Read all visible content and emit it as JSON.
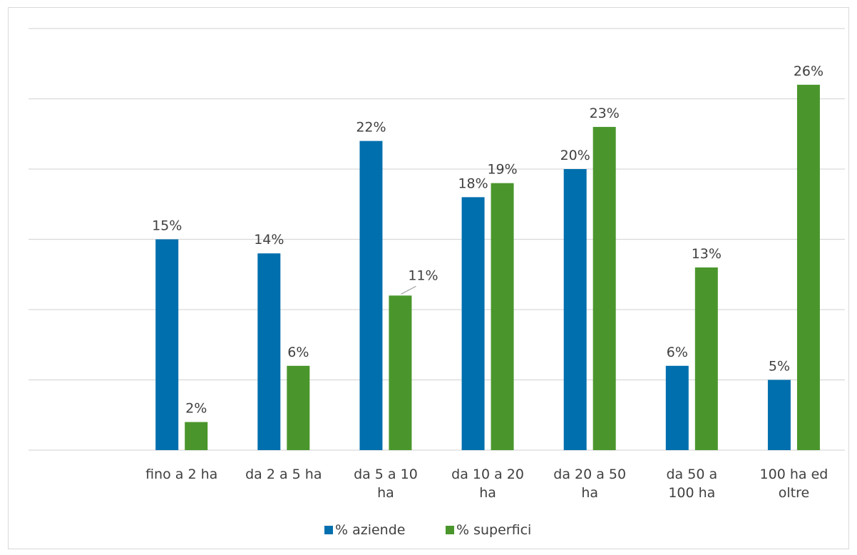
{
  "chart_data": {
    "type": "bar",
    "categories": [
      [
        "",
        ""
      ],
      [
        "fino a 2 ha",
        ""
      ],
      [
        "da 2 a 5 ha",
        ""
      ],
      [
        "da 5 a 10",
        "ha"
      ],
      [
        "da 10 a 20",
        "ha"
      ],
      [
        "da 20 a 50",
        "ha"
      ],
      [
        "da 50 a",
        "100 ha"
      ],
      [
        "100 ha ed",
        "oltre"
      ]
    ],
    "series": [
      {
        "name": "% aziende",
        "color": "#006FAE",
        "values": [
          null,
          15,
          14,
          22,
          18,
          20,
          6,
          5
        ],
        "labels": [
          "",
          "15%",
          "14%",
          "22%",
          "18%",
          "20%",
          "6%",
          "5%"
        ]
      },
      {
        "name": "% superfici",
        "color": "#4A962C",
        "values": [
          null,
          2,
          6,
          11,
          19,
          23,
          13,
          26
        ],
        "labels": [
          "",
          "2%",
          "6%",
          "11%",
          "19%",
          "23%",
          "13%",
          "26%"
        ]
      }
    ],
    "ylim": [
      0,
      30
    ],
    "gridline_step": 5,
    "y_axis_labels_shown": false,
    "legend": "bottom"
  }
}
